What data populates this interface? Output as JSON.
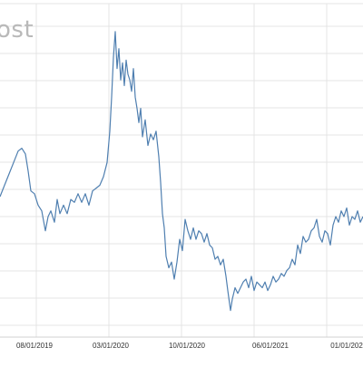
{
  "chart_data": {
    "type": "line",
    "title": "ost",
    "xlabel": "",
    "ylabel": "",
    "x_ticks": [
      "08/01/2019",
      "03/01/2020",
      "10/01/2020",
      "06/01/2021",
      "01/01/202"
    ],
    "grid": true,
    "legend": "none",
    "colors": {
      "line": "#4f7fb0",
      "grid": "#e4e4e4",
      "tick_text": "#333333",
      "title": "#b9b9b9"
    },
    "ylim": [
      0,
      100
    ],
    "series": [
      {
        "values": [
          [
            0,
            43
          ],
          [
            5,
            47
          ],
          [
            10,
            51
          ],
          [
            15,
            55
          ],
          [
            20,
            59
          ],
          [
            24,
            60
          ],
          [
            28,
            58
          ],
          [
            31,
            52
          ],
          [
            34,
            45
          ],
          [
            38,
            44
          ],
          [
            42,
            40
          ],
          [
            46,
            38
          ],
          [
            50,
            31
          ],
          [
            53,
            36
          ],
          [
            56,
            38
          ],
          [
            60,
            34
          ],
          [
            63,
            42
          ],
          [
            66,
            37
          ],
          [
            70,
            40
          ],
          [
            74,
            37
          ],
          [
            78,
            42
          ],
          [
            82,
            41
          ],
          [
            86,
            44
          ],
          [
            90,
            41
          ],
          [
            94,
            44
          ],
          [
            98,
            40
          ],
          [
            102,
            45
          ],
          [
            106,
            46
          ],
          [
            110,
            47
          ],
          [
            114,
            50
          ],
          [
            118,
            55
          ],
          [
            121,
            66
          ],
          [
            123,
            78
          ],
          [
            125,
            92
          ],
          [
            127,
            101
          ],
          [
            129,
            88
          ],
          [
            131,
            95
          ],
          [
            133,
            84
          ],
          [
            135,
            90
          ],
          [
            137,
            82
          ],
          [
            139,
            91
          ],
          [
            141,
            86
          ],
          [
            143,
            84
          ],
          [
            145,
            80
          ],
          [
            147,
            88
          ],
          [
            149,
            78
          ],
          [
            151,
            74
          ],
          [
            153,
            69
          ],
          [
            155,
            74
          ],
          [
            157,
            64
          ],
          [
            160,
            70
          ],
          [
            163,
            61
          ],
          [
            166,
            65
          ],
          [
            169,
            63
          ],
          [
            172,
            66
          ],
          [
            175,
            57
          ],
          [
            177,
            48
          ],
          [
            179,
            37
          ],
          [
            181,
            32
          ],
          [
            183,
            22
          ],
          [
            186,
            18
          ],
          [
            189,
            20
          ],
          [
            192,
            14
          ],
          [
            195,
            20
          ],
          [
            198,
            28
          ],
          [
            201,
            24
          ],
          [
            204,
            35
          ],
          [
            207,
            31
          ],
          [
            210,
            28
          ],
          [
            213,
            32
          ],
          [
            216,
            28
          ],
          [
            219,
            31
          ],
          [
            222,
            30
          ],
          [
            225,
            27
          ],
          [
            228,
            30
          ],
          [
            231,
            26
          ],
          [
            234,
            25
          ],
          [
            237,
            21
          ],
          [
            240,
            22
          ],
          [
            243,
            19
          ],
          [
            246,
            21
          ],
          [
            249,
            15
          ],
          [
            251,
            10
          ],
          [
            254,
            3
          ],
          [
            256,
            7
          ],
          [
            259,
            11
          ],
          [
            262,
            9
          ],
          [
            265,
            11
          ],
          [
            268,
            13
          ],
          [
            271,
            14
          ],
          [
            274,
            11
          ],
          [
            277,
            15
          ],
          [
            280,
            10
          ],
          [
            283,
            13
          ],
          [
            286,
            12
          ],
          [
            289,
            11
          ],
          [
            292,
            13
          ],
          [
            295,
            10
          ],
          [
            298,
            12
          ],
          [
            301,
            15
          ],
          [
            304,
            13
          ],
          [
            307,
            14
          ],
          [
            310,
            16
          ],
          [
            313,
            15
          ],
          [
            316,
            17
          ],
          [
            319,
            18
          ],
          [
            322,
            21
          ],
          [
            325,
            19
          ],
          [
            328,
            26
          ],
          [
            331,
            23
          ],
          [
            334,
            29
          ],
          [
            337,
            27
          ],
          [
            340,
            28
          ],
          [
            343,
            31
          ],
          [
            346,
            32
          ],
          [
            349,
            35
          ],
          [
            352,
            29
          ],
          [
            355,
            27
          ],
          [
            358,
            31
          ],
          [
            361,
            30
          ],
          [
            364,
            26
          ],
          [
            367,
            33
          ],
          [
            370,
            36
          ],
          [
            373,
            34
          ],
          [
            376,
            38
          ],
          [
            379,
            36
          ],
          [
            382,
            39
          ],
          [
            385,
            33
          ],
          [
            388,
            36
          ],
          [
            391,
            35
          ],
          [
            394,
            38
          ],
          [
            397,
            34
          ],
          [
            400,
            36
          ]
        ]
      }
    ]
  }
}
